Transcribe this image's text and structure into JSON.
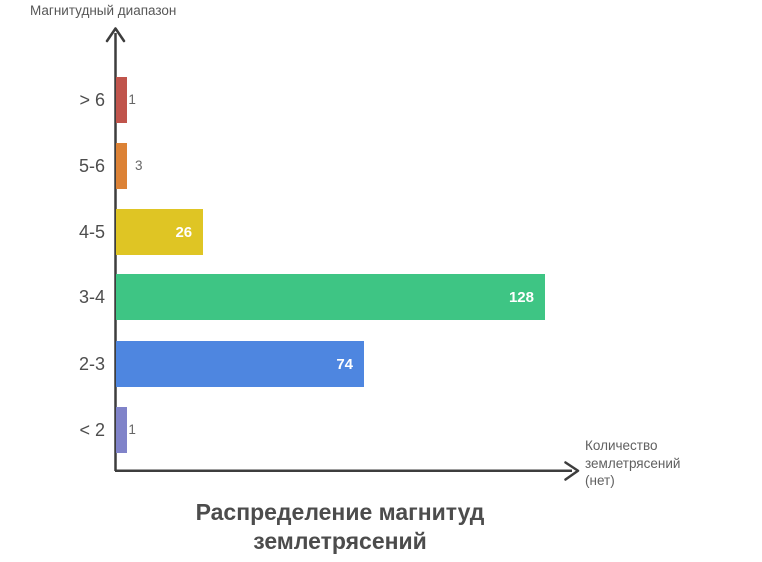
{
  "chart_data": {
    "type": "bar",
    "orientation": "horizontal",
    "title": "Распределение магнитуд землетрясений",
    "title_lines": [
      "Распределение магнитуд",
      "землетрясений"
    ],
    "xlabel": "Количество землетрясений (нет)",
    "xlabel_lines": [
      "Количество",
      "землетрясений",
      "(нет)"
    ],
    "ylabel": "Магнитудный диапазон",
    "categories": [
      "> 6",
      "5-6",
      "4-5",
      "3-4",
      "2-3",
      "< 2"
    ],
    "values": [
      1,
      3,
      26,
      128,
      74,
      1
    ],
    "bar_colors": [
      "#c0544c",
      "#dc8236",
      "#dfc524",
      "#3ec584",
      "#4e86e0",
      "#8083c9"
    ],
    "value_label_inside": [
      false,
      false,
      true,
      true,
      true,
      false
    ],
    "xlim": [
      0,
      137
    ],
    "grid": false,
    "legend": false
  },
  "colors": {
    "axis": "#3d3d3d",
    "background": "#ffffff",
    "category_text": "#4d4d4d",
    "value_outside_text": "#666666",
    "value_inside_text": "#ffffff",
    "title_text": "#4c4c4c",
    "axis_label_text": "#606060"
  }
}
